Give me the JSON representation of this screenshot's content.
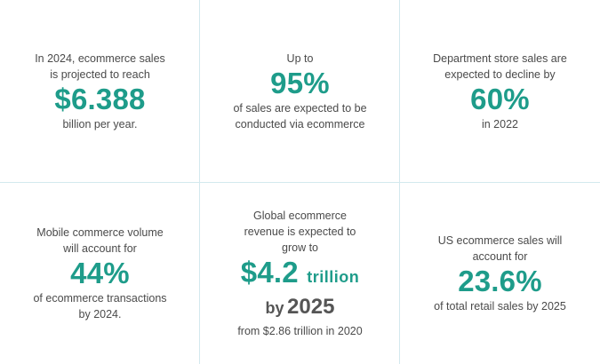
{
  "colors": {
    "accent": "#1e9c8a",
    "text": "#4a4a4a",
    "divider": "#d3e9ee"
  },
  "stats": {
    "ecommerce_sales": {
      "line1": "In 2024, ecommerce sales",
      "line2": "is projected to reach",
      "value": "$6.388",
      "after": "billion per year."
    },
    "sales_via_ecommerce": {
      "line1": "Up to",
      "value": "95%",
      "after1": "of sales are expected to be",
      "after2": "conducted via ecommerce"
    },
    "department_store": {
      "line1": "Department store sales are",
      "line2": "expected to decline by",
      "value": "60%",
      "after": "in 2022"
    },
    "mobile_commerce": {
      "line1": "Mobile commerce volume",
      "line2": "will account for",
      "value": "44%",
      "after1": "of ecommerce transactions",
      "after2": "by 2024."
    },
    "global_revenue": {
      "line1": "Global ecommerce",
      "line2": "revenue is expected to",
      "line3": "grow to",
      "value": "$4.2",
      "unit": "trillion",
      "by_word": "by",
      "year": "2025",
      "after": "from $2.86 trillion in 2020"
    },
    "us_retail": {
      "line1": "US ecommerce sales will",
      "line2": "account for",
      "value": "23.6%",
      "after": "of total retail sales by 2025"
    }
  }
}
